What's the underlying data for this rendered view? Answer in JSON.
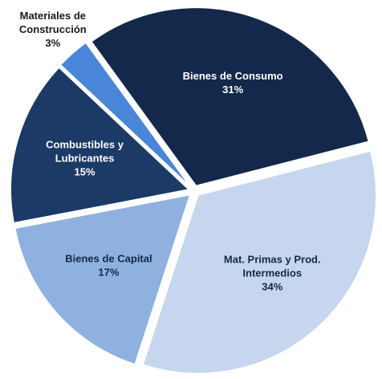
{
  "chart_data": {
    "type": "pie",
    "categories": [
      [
        "Bienes de Consumo"
      ],
      [
        "Mat. Primas y Prod.",
        "Intermedios"
      ],
      [
        "Bienes de Capital"
      ],
      [
        "Combustibles y",
        "Lubricantes"
      ],
      [
        "Materiales de",
        "Construcción"
      ]
    ],
    "values": [
      31,
      34,
      17,
      15,
      3
    ],
    "value_labels": [
      "31%",
      "34%",
      "17%",
      "15%",
      "3%"
    ],
    "colors": [
      "#13284a",
      "#c5d6ee",
      "#8eb1e0",
      "#1b3a66",
      "#4a86d8"
    ],
    "label_colors": [
      "#ffffff",
      "#13284a",
      "#13284a",
      "#ffffff",
      "#13284a"
    ]
  }
}
